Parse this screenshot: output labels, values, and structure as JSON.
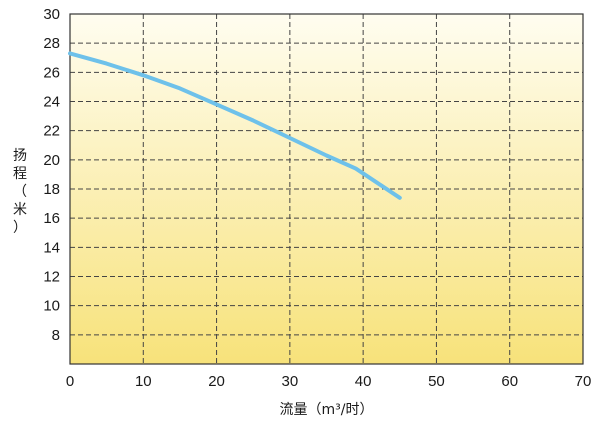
{
  "chart_data": {
    "type": "line",
    "title": "",
    "xlabel": "流量（m³/时）",
    "ylabel": "扬程（米）",
    "xlim": [
      0,
      70
    ],
    "ylim": [
      6,
      30
    ],
    "x_ticks": [
      0,
      10,
      20,
      30,
      40,
      50,
      60,
      70
    ],
    "y_ticks": [
      8,
      10,
      12,
      14,
      16,
      18,
      20,
      22,
      24,
      26,
      28,
      30
    ],
    "grid": true,
    "legend": "none",
    "background_gradient": [
      "#fffdf0",
      "#f7e27a"
    ],
    "series": [
      {
        "color": "#6ec1ea",
        "x": [
          0,
          5,
          10,
          15,
          20,
          25,
          30,
          35,
          39,
          42,
          45
        ],
        "y": [
          27.3,
          26.6,
          25.8,
          24.9,
          23.8,
          22.7,
          21.5,
          20.3,
          19.4,
          18.4,
          17.4
        ]
      }
    ]
  }
}
